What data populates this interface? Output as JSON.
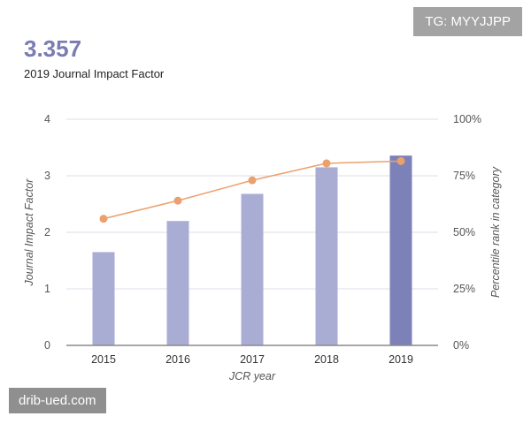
{
  "header": {
    "value": "3.357",
    "label": "2019 Journal Impact Factor"
  },
  "tag": "TG: MYYJJPP",
  "watermark": "drib-ued.com",
  "colors": {
    "bar": "#a9add4",
    "bar_highlight": "#7c81b8",
    "line": "#eba06e",
    "grid": "#dcdcea",
    "axis_text": "#555555"
  },
  "chart_data": {
    "type": "bar",
    "categories": [
      "2015",
      "2016",
      "2017",
      "2018",
      "2019"
    ],
    "series": [
      {
        "name": "Journal Impact Factor",
        "type": "bar",
        "axis": "left",
        "values": [
          1.65,
          2.2,
          2.68,
          3.15,
          3.357
        ]
      },
      {
        "name": "Percentile rank in category",
        "type": "line",
        "axis": "right",
        "values": [
          56,
          64,
          73,
          80.5,
          81.5
        ]
      }
    ],
    "xlabel": "JCR year",
    "ylabel": "Journal Impact Factor",
    "y2label": "Percentile rank in category",
    "ylim": [
      0,
      4
    ],
    "y2lim": [
      0,
      100
    ],
    "yticks": [
      "0",
      "1",
      "2",
      "3",
      "4"
    ],
    "y2ticks": [
      "0%",
      "25%",
      "50%",
      "75%",
      "100%"
    ],
    "highlight_category": "2019"
  }
}
